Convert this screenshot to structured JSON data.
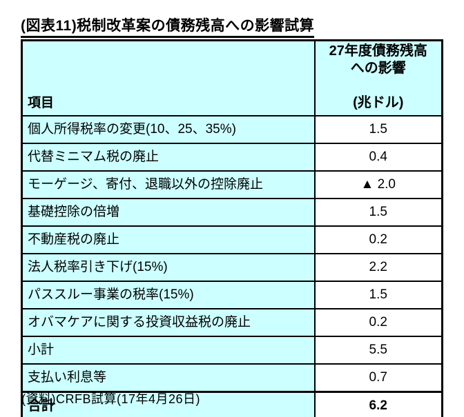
{
  "title": "(図表11)税制改革案の債務残高への影響試算",
  "table": {
    "header": {
      "item_label": "項目",
      "value_label_line1": "27年度債務残高",
      "value_label_line2": "への影響",
      "value_unit": "(兆ドル)"
    },
    "rows": [
      {
        "label": "個人所得税率の変更(10、25、35%)",
        "value": "1.5"
      },
      {
        "label": "代替ミニマム税の廃止",
        "value": "0.4"
      },
      {
        "label": "モーゲージ、寄付、退職以外の控除廃止",
        "value": "▲ 2.0"
      },
      {
        "label": "基礎控除の倍増",
        "value": "1.5"
      },
      {
        "label": "不動産税の廃止",
        "value": "0.2"
      },
      {
        "label": "法人税率引き下げ(15%)",
        "value": "2.2"
      },
      {
        "label": "パススルー事業の税率(15%)",
        "value": "1.5"
      },
      {
        "label": "オバマケアに関する投資収益税の廃止",
        "value": "0.2"
      },
      {
        "label": "小計",
        "value": "5.5"
      },
      {
        "label": "支払い利息等",
        "value": "0.7"
      },
      {
        "label": "合計",
        "value": "6.2"
      }
    ]
  },
  "source": "(資料)CRFB試算(17年4月26日)",
  "colors": {
    "header_fill": "#CCFFFF",
    "value_fill": "#FFFFFF",
    "border": "#000000"
  }
}
